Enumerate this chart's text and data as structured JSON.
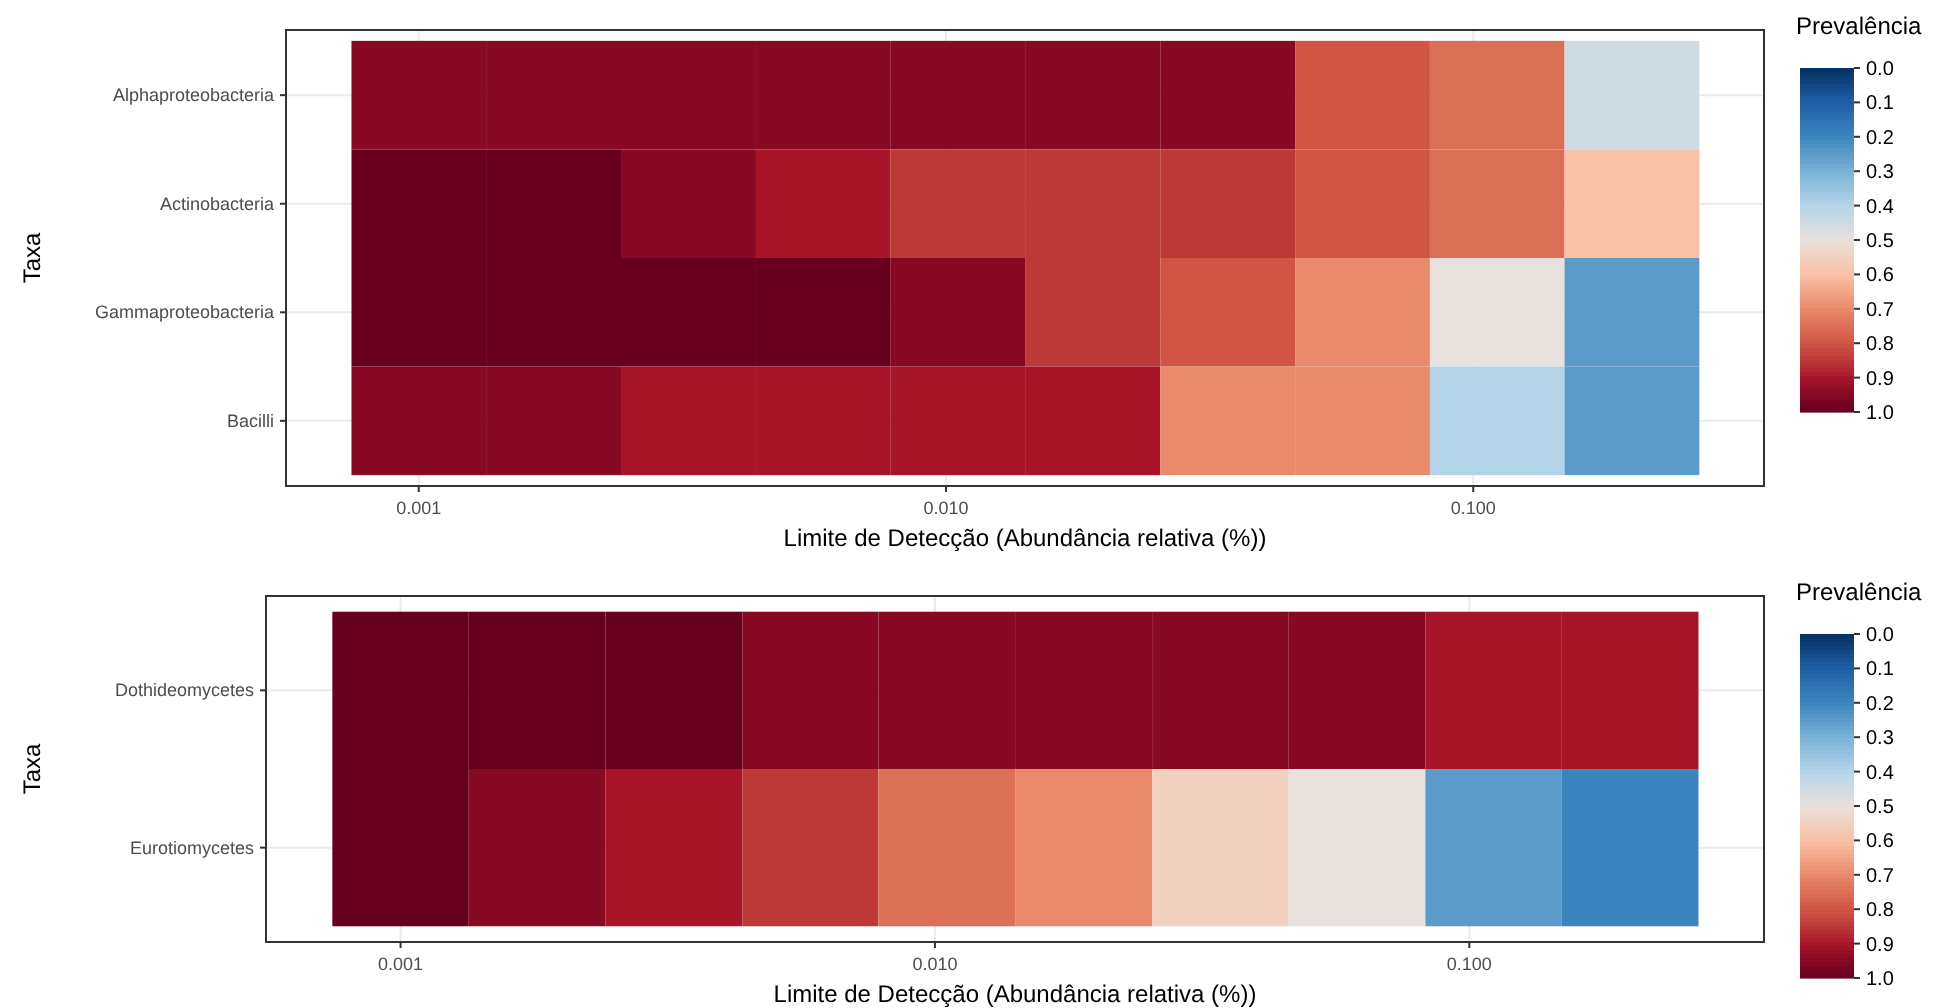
{
  "chart_data": [
    {
      "type": "heatmap",
      "xlabel": "Limite de Detecção (Abundância relativa (%))",
      "ylabel": "Taxa",
      "legend_title": "Prevalência",
      "grid": true,
      "log": "x",
      "x": [
        0.001,
        0.0018,
        0.00325,
        0.00585,
        0.0105,
        0.019,
        0.0342,
        0.0617,
        0.111,
        0.2
      ],
      "y_categories": [
        "Alphaproteobacteria",
        "Actinobacteria",
        "Gammaproteobacteria",
        "Bacilli"
      ],
      "cells": [
        [
          0.95,
          0.95,
          0.95,
          0.95,
          0.95,
          0.95,
          0.95,
          0.8,
          0.75,
          0.45
        ],
        [
          1.0,
          1.0,
          0.95,
          0.9,
          0.85,
          0.85,
          0.85,
          0.8,
          0.75,
          0.6
        ],
        [
          1.0,
          1.0,
          1.0,
          1.0,
          0.95,
          0.85,
          0.8,
          0.7,
          0.5,
          0.25
        ],
        [
          0.95,
          0.95,
          0.9,
          0.9,
          0.9,
          0.9,
          0.7,
          0.7,
          0.4,
          0.25
        ]
      ],
      "xlim": [
        0.00056,
        0.356
      ],
      "xticks": [
        {
          "value": 0.001,
          "label": "0.001"
        },
        {
          "value": 0.01,
          "label": "0.010"
        },
        {
          "value": 0.1,
          "label": "0.100"
        }
      ],
      "clim": [
        0,
        1
      ],
      "cticks": [
        {
          "value": 0,
          "label": "0.0"
        },
        {
          "value": 0.1,
          "label": "0.1"
        },
        {
          "value": 0.2,
          "label": "0.2"
        },
        {
          "value": 0.3,
          "label": "0.3"
        },
        {
          "value": 0.4,
          "label": "0.4"
        },
        {
          "value": 0.5,
          "label": "0.5"
        },
        {
          "value": 0.6,
          "label": "0.6"
        },
        {
          "value": 0.7,
          "label": "0.7"
        },
        {
          "value": 0.8,
          "label": "0.8"
        },
        {
          "value": 0.9,
          "label": "0.9"
        },
        {
          "value": 1.0,
          "label": "1.0"
        }
      ]
    },
    {
      "type": "heatmap",
      "xlabel": "Limite de Detecção (Abundância relativa (%))",
      "ylabel": "Taxa",
      "legend_title": "Prevalência",
      "grid": true,
      "log": "x",
      "x": [
        0.001,
        0.0018,
        0.00325,
        0.00585,
        0.0105,
        0.019,
        0.0342,
        0.0617,
        0.111,
        0.2
      ],
      "y_categories": [
        "Dothideomycetes",
        "Eurotiomycetes"
      ],
      "cells": [
        [
          1.0,
          1.0,
          1.0,
          0.95,
          0.95,
          0.95,
          0.95,
          0.95,
          0.9,
          0.9
        ],
        [
          1.0,
          0.95,
          0.9,
          0.85,
          0.75,
          0.7,
          0.55,
          0.5,
          0.25,
          0.2
        ]
      ],
      "xlim": [
        0.00056,
        0.356
      ],
      "xticks": [
        {
          "value": 0.001,
          "label": "0.001"
        },
        {
          "value": 0.01,
          "label": "0.010"
        },
        {
          "value": 0.1,
          "label": "0.100"
        }
      ],
      "clim": [
        0,
        1
      ],
      "cticks": [
        {
          "value": 0,
          "label": "0.0"
        },
        {
          "value": 0.1,
          "label": "0.1"
        },
        {
          "value": 0.2,
          "label": "0.2"
        },
        {
          "value": 0.3,
          "label": "0.3"
        },
        {
          "value": 0.4,
          "label": "0.4"
        },
        {
          "value": 0.5,
          "label": "0.5"
        },
        {
          "value": 0.6,
          "label": "0.6"
        },
        {
          "value": 0.7,
          "label": "0.7"
        },
        {
          "value": 0.8,
          "label": "0.8"
        },
        {
          "value": 0.9,
          "label": "0.9"
        },
        {
          "value": 1.0,
          "label": "1.0"
        }
      ]
    }
  ]
}
